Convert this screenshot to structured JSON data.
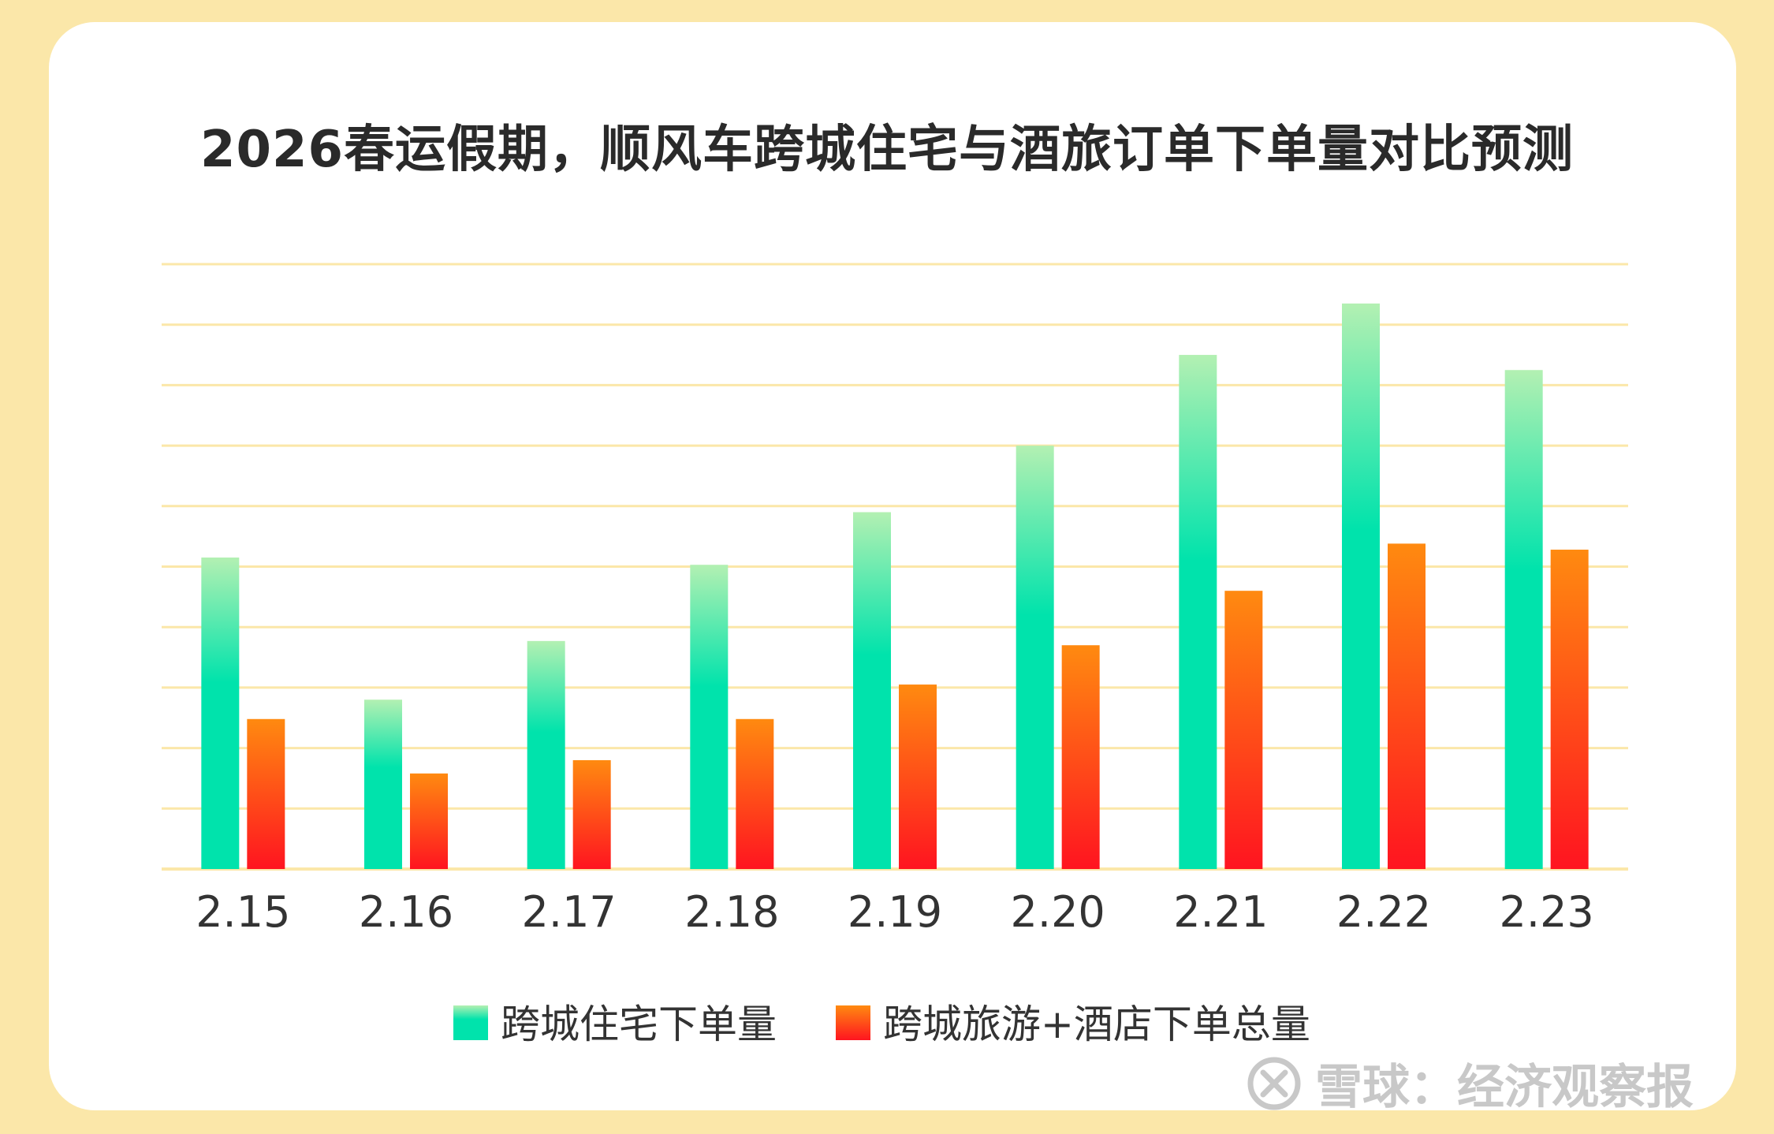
{
  "chart_data": {
    "type": "bar",
    "title": "2026春运假期，顺风车跨城住宅与酒旅订单下单量对比预测",
    "categories": [
      "2.15",
      "2.16",
      "2.17",
      "2.18",
      "2.19",
      "2.20",
      "2.21",
      "2.22",
      "2.23"
    ],
    "series": [
      {
        "name": "跨城住宅下单量",
        "values": [
          51.5,
          28,
          37.7,
          50.3,
          59,
          70,
          85,
          93.5,
          82.5
        ]
      },
      {
        "name": "跨城旅游+酒店下单总量",
        "values": [
          24.8,
          15.8,
          18,
          24.8,
          30.5,
          37,
          46,
          53.8,
          52.8
        ]
      }
    ],
    "ylim": [
      0,
      100
    ],
    "grid": true,
    "legend_position": "bottom",
    "colors": {
      "series0_top": "#b3f0b2",
      "series0_bottom": "#00e3ac",
      "series1_top": "#ff8a10",
      "series1_bottom": "#ff1420",
      "gridline": "#fbe7a9"
    }
  },
  "watermark": {
    "text": "雪球：经济观察报"
  }
}
